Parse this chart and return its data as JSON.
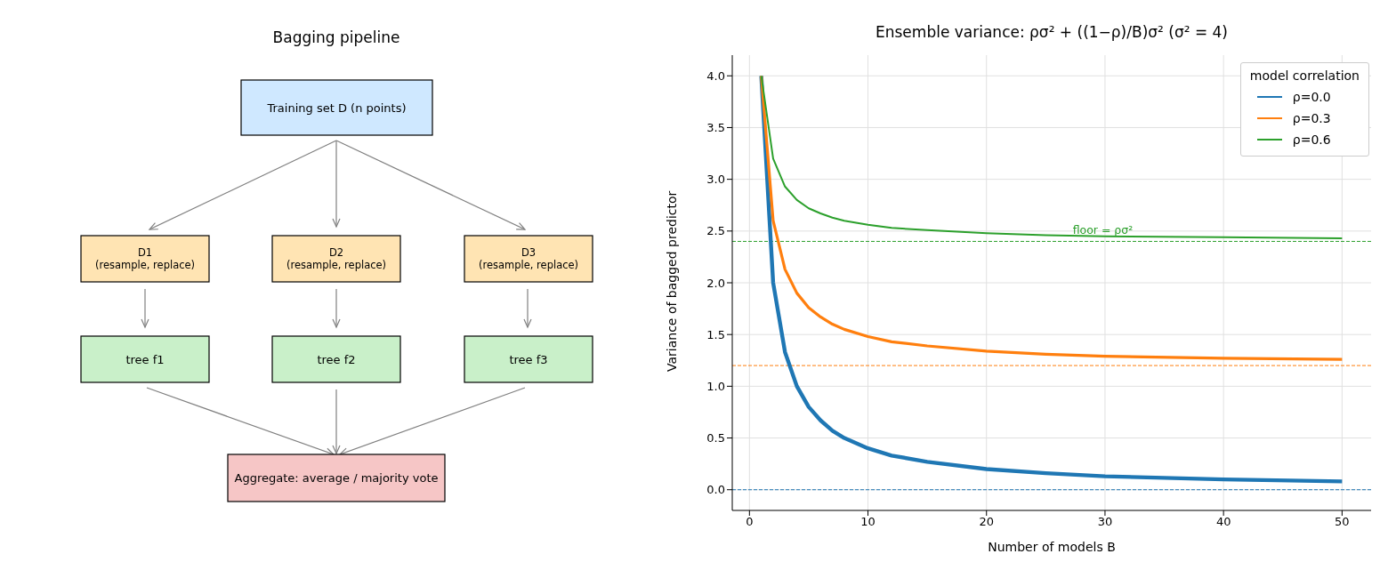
{
  "chart_data": [
    {
      "type": "other",
      "title": "Bagging pipeline",
      "annotations": [
        "Training set D  (n points)",
        "D1\n(resample, replace)",
        "D2\n(resample, replace)",
        "D3\n(resample, replace)",
        "tree f1",
        "tree f2",
        "tree f3",
        "Aggregate: average / majority vote"
      ],
      "colors": [
        "#cfe8ff",
        "#ffe4b3",
        "#ffe4b3",
        "#ffe4b3",
        "#c9f0c9",
        "#c9f0c9",
        "#c9f0c9",
        "#f6c6c6"
      ]
    },
    {
      "type": "line",
      "title": "Ensemble variance: ρσ² + ((1−ρ)/B)σ²  (σ² = 4)",
      "xlabel": "Number of models B",
      "ylabel": "Variance of bagged predictor",
      "legend_title": "model correlation",
      "legend": "top right",
      "grid": true,
      "x": [
        1,
        2,
        3,
        4,
        5,
        6,
        7,
        8,
        10,
        12,
        15,
        20,
        25,
        30,
        40,
        50
      ],
      "series": [
        {
          "name": "ρ=0.0",
          "color": "#1f77b4",
          "values": [
            4,
            2,
            1.33,
            1,
            0.8,
            0.67,
            0.57,
            0.5,
            0.4,
            0.33,
            0.27,
            0.2,
            0.16,
            0.13,
            0.1,
            0.08
          ]
        },
        {
          "name": "ρ=0.3",
          "color": "#ff7f0e",
          "values": [
            4,
            2.6,
            2.13,
            1.9,
            1.76,
            1.67,
            1.6,
            1.55,
            1.48,
            1.43,
            1.39,
            1.34,
            1.31,
            1.29,
            1.27,
            1.26
          ]
        },
        {
          "name": "ρ=0.6",
          "color": "#2ca02c",
          "values": [
            4,
            3.2,
            2.93,
            2.8,
            2.72,
            2.67,
            2.63,
            2.6,
            2.56,
            2.53,
            2.51,
            2.48,
            2.46,
            2.45,
            2.44,
            2.43
          ]
        }
      ],
      "ref_lines": [
        {
          "axis": "y",
          "value": 0,
          "color": "#1f77b4",
          "line_style": "dashed"
        },
        {
          "axis": "y",
          "value": 1.2,
          "color": "#ff7f0e",
          "line_style": "dashed"
        },
        {
          "axis": "y",
          "value": 2.4,
          "color": "#2ca02c",
          "line_style": "dashed",
          "label": "floor = ρσ²"
        }
      ],
      "xlim": [
        -1.45,
        52.45
      ],
      "xticks": [
        0,
        10,
        20,
        30,
        40,
        50
      ],
      "ylim": [
        -0.2,
        4.2
      ],
      "yticks": [
        {
          "value": 0,
          "label": "0.0"
        },
        {
          "value": 0.5,
          "label": "0.5"
        },
        {
          "value": 1,
          "label": "1.0"
        },
        {
          "value": 1.5,
          "label": "1.5"
        },
        {
          "value": 2,
          "label": "2.0"
        },
        {
          "value": 2.5,
          "label": "2.5"
        },
        {
          "value": 3,
          "label": "3.0"
        },
        {
          "value": 3.5,
          "label": "3.5"
        },
        {
          "value": 4,
          "label": "4.0"
        }
      ]
    }
  ]
}
